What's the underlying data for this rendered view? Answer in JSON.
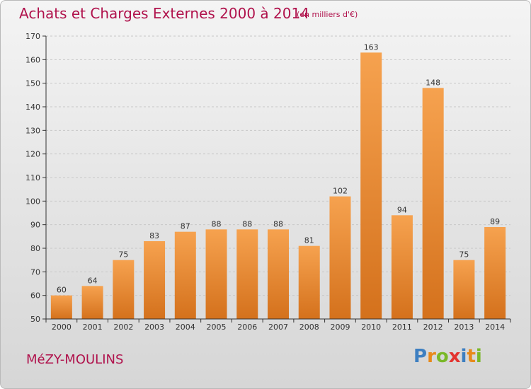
{
  "chart_data": {
    "type": "bar",
    "title": "Achats et Charges Externes 2000 à 2014",
    "subtitle": "(en milliers d'€)",
    "categories": [
      "2000",
      "2001",
      "2002",
      "2003",
      "2004",
      "2005",
      "2006",
      "2007",
      "2008",
      "2009",
      "2010",
      "2011",
      "2012",
      "2013",
      "2014"
    ],
    "values": [
      60,
      64,
      75,
      83,
      87,
      88,
      88,
      88,
      81,
      102,
      163,
      94,
      148,
      75,
      89
    ],
    "ylim": [
      50,
      170
    ],
    "yticks": [
      50,
      60,
      70,
      80,
      90,
      100,
      110,
      120,
      130,
      140,
      150,
      160,
      170
    ],
    "grid": "y-dashed",
    "bar_color_top": "#f6a24f",
    "bar_color_bottom": "#d4711c"
  },
  "footer": {
    "commune": "MéZY-MOULINS",
    "brand_letters": [
      "P",
      "r",
      "o",
      "x",
      "i",
      "t",
      "i"
    ],
    "brand_colors": [
      "#3d7fc1",
      "#e8891a",
      "#7ab828",
      "#e3342f",
      "#3d7fc1",
      "#e8891a",
      "#7ab828"
    ]
  },
  "colors": {
    "title": "#b0124c",
    "axis": "#333333",
    "grid": "#c8c8c8"
  }
}
